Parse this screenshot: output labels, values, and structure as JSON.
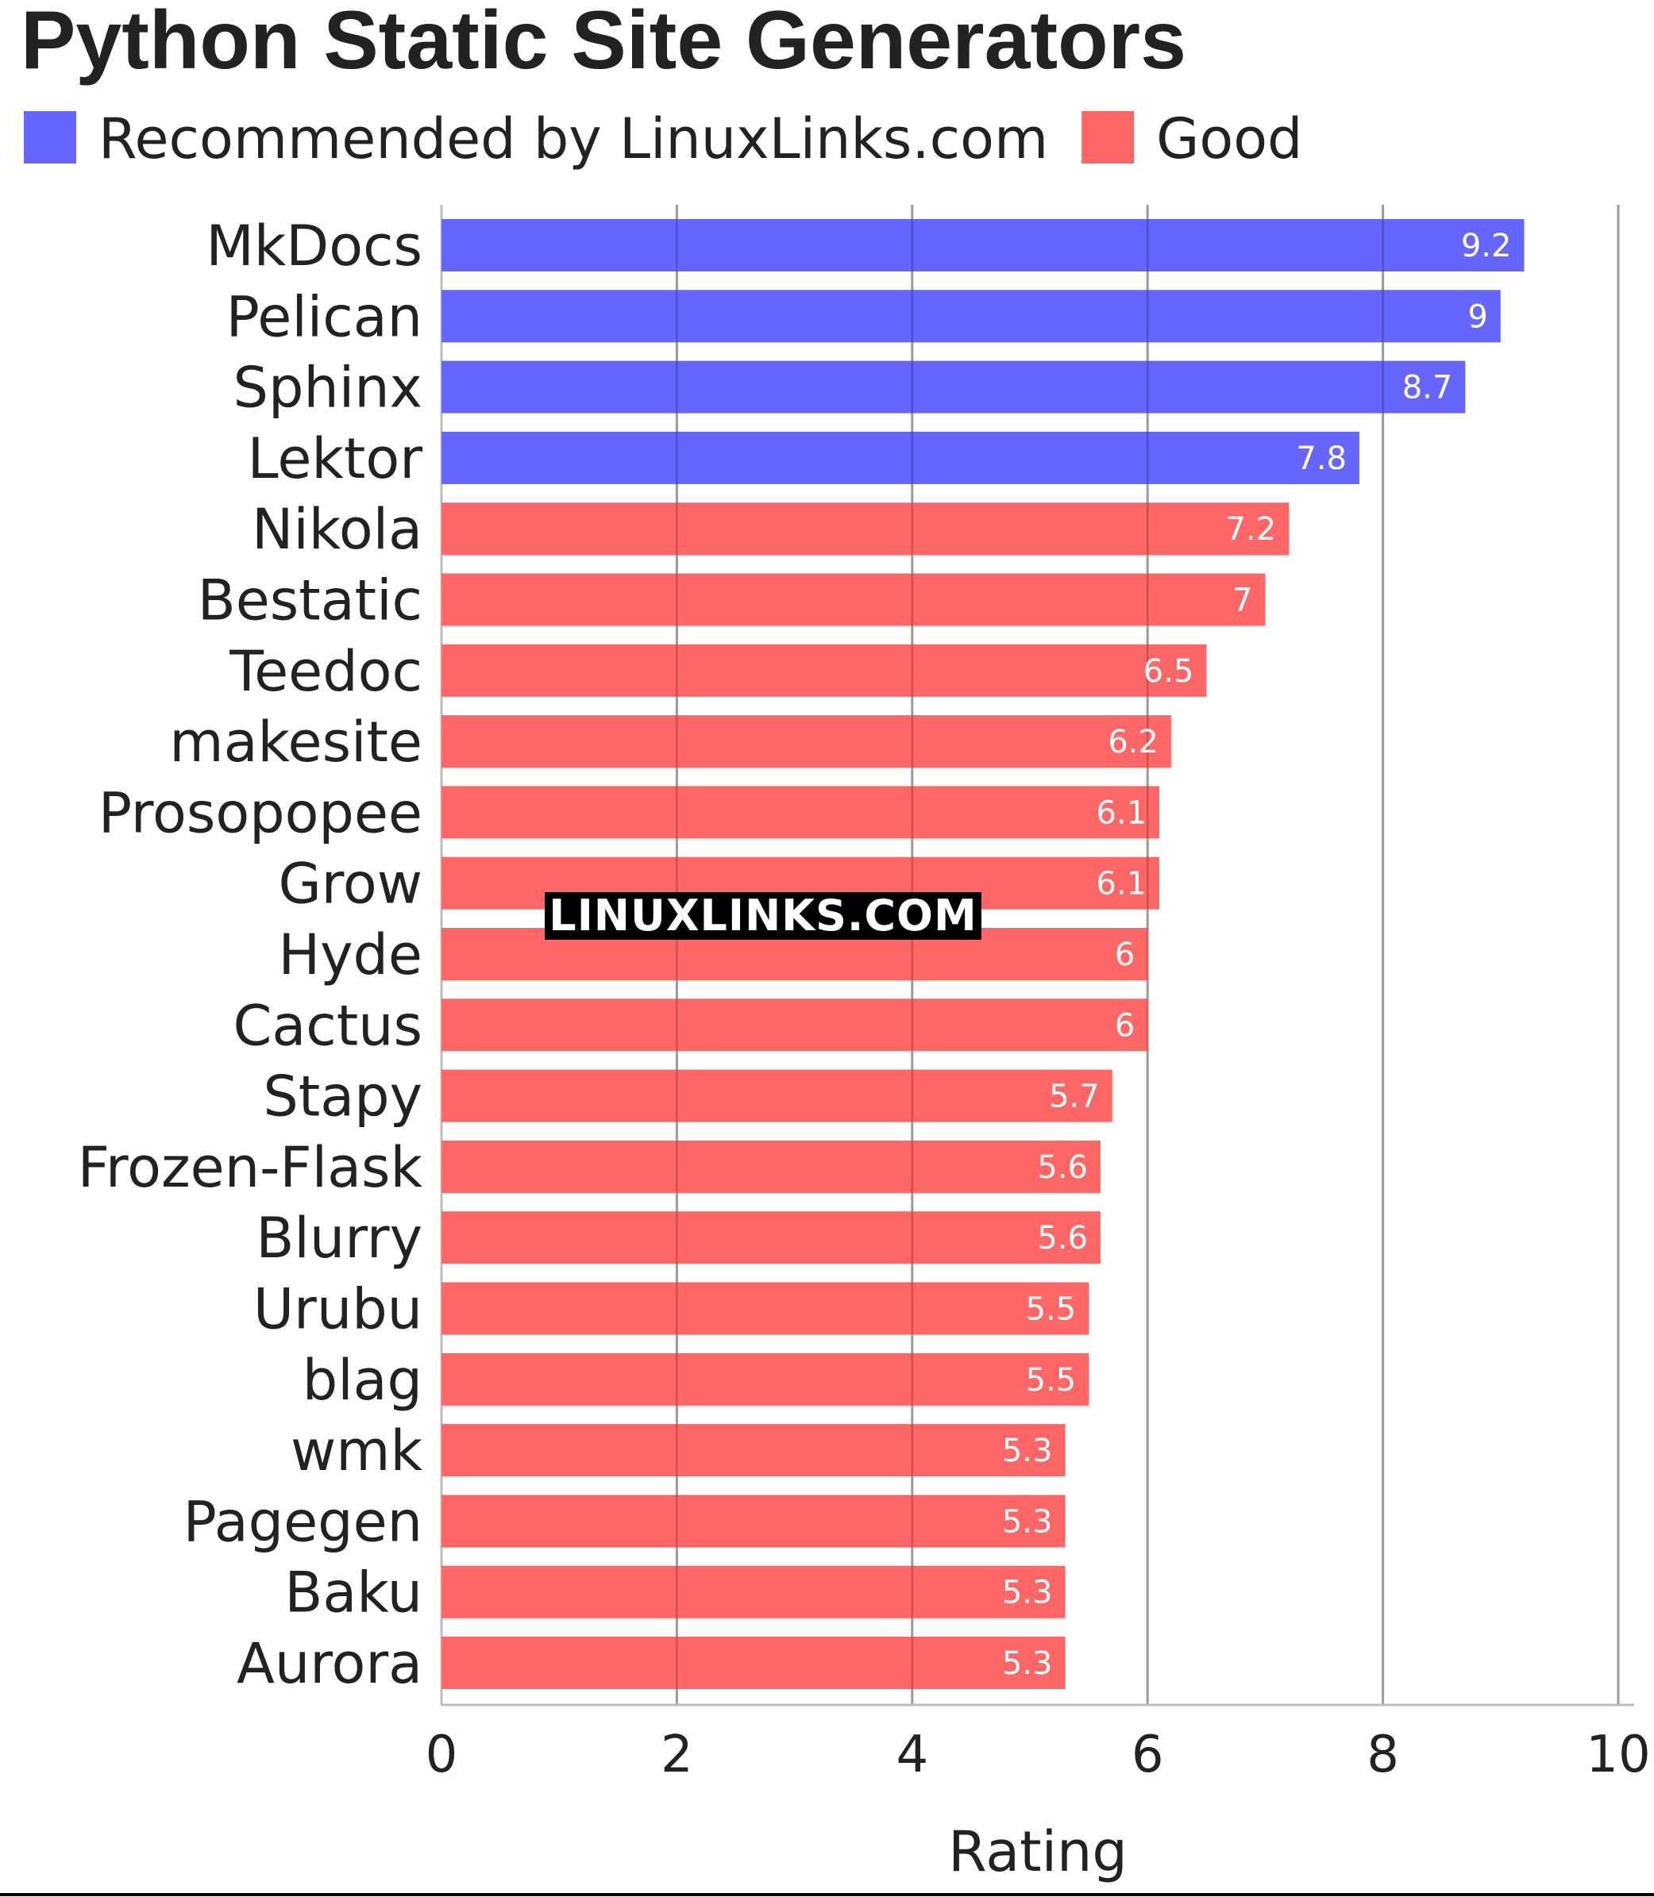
{
  "chart_data": {
    "type": "bar",
    "orientation": "horizontal",
    "title": "Python Static Site Generators",
    "xlabel": "Rating",
    "ylabel": "",
    "xlim": [
      0,
      10
    ],
    "xticks": [
      "0",
      "2",
      "4",
      "6",
      "8",
      "10"
    ],
    "grid": true,
    "legend": {
      "placement": "top-left",
      "entries": [
        {
          "label": "Recommended by LinuxLinks.com",
          "color": "#6666ff"
        },
        {
          "label": "Good",
          "color": "#ff6666"
        }
      ]
    },
    "categories": [
      "MkDocs",
      "Pelican",
      "Sphinx",
      "Lektor",
      "Nikola",
      "Bestatic",
      "Teedoc",
      "makesite",
      "Prosopopee",
      "Grow",
      "Hyde",
      "Cactus",
      "Stapy",
      "Frozen-Flask",
      "Blurry",
      "Urubu",
      "blag",
      "wmk",
      "Pagegen",
      "Baku",
      "Aurora"
    ],
    "values": [
      9.2,
      9,
      8.7,
      7.8,
      7.2,
      7,
      6.5,
      6.2,
      6.1,
      6.1,
      6,
      6,
      5.7,
      5.6,
      5.6,
      5.5,
      5.5,
      5.3,
      5.3,
      5.3,
      5.3
    ],
    "value_labels": [
      "9.2",
      "9",
      "8.7",
      "7.8",
      "7.2",
      "7",
      "6.5",
      "6.2",
      "6.1",
      "6.1",
      "6",
      "6",
      "5.7",
      "5.6",
      "5.6",
      "5.5",
      "5.5",
      "5.3",
      "5.3",
      "5.3",
      "5.3"
    ],
    "groups": [
      "Recommended by LinuxLinks.com",
      "Recommended by LinuxLinks.com",
      "Recommended by LinuxLinks.com",
      "Recommended by LinuxLinks.com",
      "Good",
      "Good",
      "Good",
      "Good",
      "Good",
      "Good",
      "Good",
      "Good",
      "Good",
      "Good",
      "Good",
      "Good",
      "Good",
      "Good",
      "Good",
      "Good",
      "Good"
    ]
  },
  "watermark": "LINUXLINKS.COM"
}
